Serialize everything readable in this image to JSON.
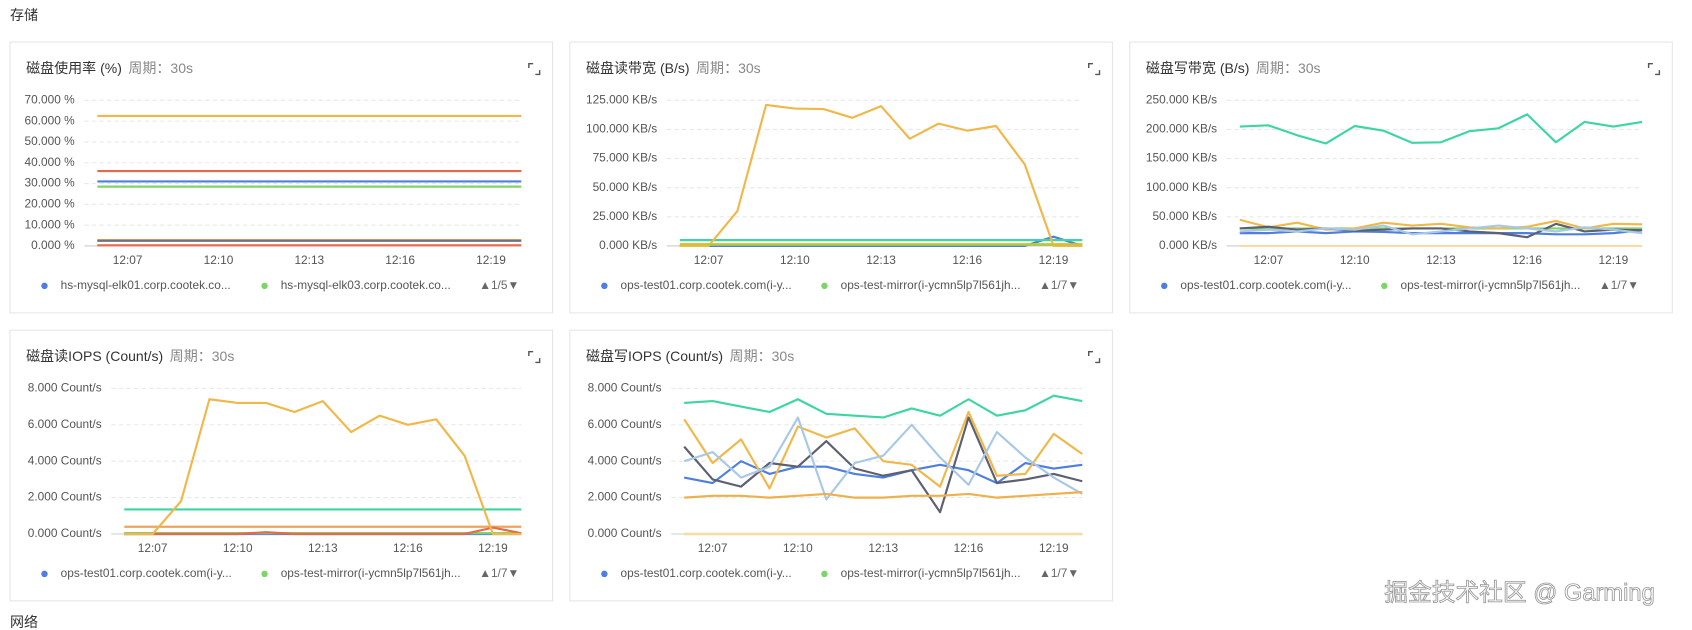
{
  "section_title": "存储",
  "next_section_title": "网络",
  "watermark": "掘金技术社区 @ Garming",
  "chart_data": [
    {
      "type": "line",
      "title": "磁盘使用率 (%)",
      "subtitle": "周期：30s",
      "categories": [
        null,
        "12:07",
        null,
        null,
        "12:10",
        null,
        null,
        "12:13",
        null,
        null,
        "12:16",
        null,
        null,
        "12:19",
        null
      ],
      "ylim": [
        0,
        70
      ],
      "yticks": [
        {
          "value": 0,
          "label": "0.000 %"
        },
        {
          "value": 10,
          "label": "10.000 %"
        },
        {
          "value": 20,
          "label": "20.000 %"
        },
        {
          "value": 30,
          "label": "30.000 %"
        },
        {
          "value": 40,
          "label": "40.000 %"
        },
        {
          "value": 50,
          "label": "50.000 %"
        },
        {
          "value": 60,
          "label": "60.000 %"
        },
        {
          "value": 70,
          "label": "70.000 %"
        }
      ],
      "grid": true,
      "legend_pager": "▲1/5▼",
      "series": [
        {
          "name": "hs-mysql-elk01.corp.cootek.co...",
          "color": "#4e7ee0",
          "values": [
            31,
            31,
            31,
            31,
            31,
            31,
            31,
            31,
            31,
            31,
            31,
            31,
            31,
            31,
            31
          ]
        },
        {
          "name": "hs-mysql-elk03.corp.cootek.co...",
          "color": "#7fd36b",
          "values": [
            28.5,
            28.5,
            28.5,
            28.5,
            28.5,
            28.5,
            28.5,
            28.5,
            28.5,
            28.5,
            28.5,
            28.5,
            28.5,
            28.5,
            28.5
          ]
        },
        {
          "color": "#f0b849",
          "values": [
            62.5,
            62.5,
            62.5,
            62.5,
            62.5,
            62.5,
            62.5,
            62.5,
            62.5,
            62.5,
            62.5,
            62.5,
            62.5,
            62.5,
            62.5
          ]
        },
        {
          "color": "#e8684a",
          "values": [
            36,
            36,
            36,
            36,
            36,
            36,
            36,
            36,
            36,
            36,
            36,
            36,
            36,
            36,
            36
          ]
        },
        {
          "color": "#f0a35e",
          "values": [
            2.8,
            2.8,
            2.8,
            2.8,
            2.8,
            2.8,
            2.8,
            2.8,
            2.8,
            2.8,
            2.8,
            2.8,
            2.8,
            2.8,
            2.8
          ]
        },
        {
          "color": "#6b7280",
          "values": [
            2.5,
            2.5,
            2.5,
            2.5,
            2.5,
            2.5,
            2.5,
            2.5,
            2.5,
            2.5,
            2.5,
            2.5,
            2.5,
            2.5,
            2.5
          ]
        },
        {
          "color": "#e8684a",
          "values": [
            0.3,
            0.3,
            0.3,
            0.3,
            0.3,
            0.3,
            0.3,
            0.3,
            0.3,
            0.3,
            0.3,
            0.3,
            0.3,
            0.3,
            0.3
          ]
        }
      ]
    },
    {
      "type": "line",
      "title": "磁盘读带宽 (B/s)",
      "subtitle": "周期：30s",
      "categories": [
        null,
        "12:07",
        null,
        null,
        "12:10",
        null,
        null,
        "12:13",
        null,
        null,
        "12:16",
        null,
        null,
        "12:19",
        null
      ],
      "ylim": [
        0,
        125
      ],
      "yticks": [
        {
          "value": 0,
          "label": "0.000 KB/s"
        },
        {
          "value": 25,
          "label": "25.000 KB/s"
        },
        {
          "value": 50,
          "label": "50.000 KB/s"
        },
        {
          "value": 75,
          "label": "75.000 KB/s"
        },
        {
          "value": 100,
          "label": "100.000 KB/s"
        },
        {
          "value": 125,
          "label": "125.000 KB/s"
        }
      ],
      "grid": true,
      "legend_pager": "▲1/7▼",
      "series": [
        {
          "name": "ops-test01.corp.cootek.com(i-y...",
          "color": "#4e7ee0",
          "values": [
            0,
            0,
            0,
            0,
            0,
            0,
            0,
            0,
            0,
            0,
            0,
            0,
            0,
            8,
            0
          ]
        },
        {
          "name": "ops-test-mirror(i-ycmn5lp7l561jh...",
          "color": "#7fd36b",
          "values": [
            1,
            1,
            1,
            1,
            1,
            1,
            1,
            1,
            1,
            1,
            1,
            1,
            1,
            1,
            1
          ]
        },
        {
          "color": "#3dd6a0",
          "values": [
            5,
            5,
            5,
            5,
            5,
            5,
            5,
            5,
            5,
            5,
            5,
            5,
            5,
            5,
            5
          ]
        },
        {
          "color": "#f0b849",
          "values": [
            0,
            0,
            30,
            121,
            118,
            117.5,
            110,
            120,
            92,
            105,
            99,
            103,
            70,
            0,
            0
          ]
        },
        {
          "color": "#c8c430",
          "values": [
            1.5,
            1.5,
            1.5,
            1.5,
            1.5,
            1.5,
            1.5,
            1.5,
            1.5,
            1.5,
            1.5,
            1.5,
            1.5,
            1.5,
            1.5
          ]
        }
      ]
    },
    {
      "type": "line",
      "title": "磁盘写带宽 (B/s)",
      "subtitle": "周期：30s",
      "categories": [
        null,
        "12:07",
        null,
        null,
        "12:10",
        null,
        null,
        "12:13",
        null,
        null,
        "12:16",
        null,
        null,
        "12:19",
        null
      ],
      "ylim": [
        0,
        250
      ],
      "yticks": [
        {
          "value": 0,
          "label": "0.000 KB/s"
        },
        {
          "value": 50,
          "label": "50.000 KB/s"
        },
        {
          "value": 100,
          "label": "100.000 KB/s"
        },
        {
          "value": 150,
          "label": "150.000 KB/s"
        },
        {
          "value": 200,
          "label": "200.000 KB/s"
        },
        {
          "value": 250,
          "label": "250.000 KB/s"
        }
      ],
      "grid": true,
      "legend_pager": "▲1/7▼",
      "series": [
        {
          "name": "ops-test01.corp.cootek.com(i-y...",
          "color": "#4e7ee0",
          "values": [
            22,
            22,
            25,
            22,
            25,
            24,
            22,
            22,
            22,
            22,
            22,
            20,
            20,
            22,
            27
          ]
        },
        {
          "name": "ops-test-mirror(i-ycmn5lp7l561jh...",
          "color": "#7fd36b",
          "values": [
            30,
            30,
            30,
            30,
            30,
            30,
            30,
            30,
            30,
            30,
            30,
            30,
            30,
            30,
            30
          ]
        },
        {
          "color": "#3dd6a0",
          "values": [
            205,
            207,
            190,
            176,
            206,
            198,
            177,
            178,
            197,
            202,
            226,
            178,
            213,
            205,
            213
          ]
        },
        {
          "color": "#f0b849",
          "values": [
            45,
            32,
            40,
            28,
            30,
            40,
            35,
            38,
            32,
            30,
            33,
            43,
            30,
            38,
            37
          ]
        },
        {
          "color": "#5d6070",
          "values": [
            30,
            33,
            28,
            30,
            26,
            28,
            30,
            30,
            25,
            22,
            15,
            38,
            25,
            28,
            27
          ]
        },
        {
          "color": "#a8c8e8",
          "values": [
            25,
            28,
            25,
            30,
            28,
            35,
            20,
            25,
            30,
            35,
            30,
            25,
            32,
            28,
            22
          ]
        },
        {
          "color": "#fcd9a5",
          "values": [
            0,
            0,
            0,
            0,
            0,
            0,
            0,
            0,
            0,
            0,
            0,
            0,
            0,
            0,
            0
          ]
        }
      ]
    },
    {
      "type": "line",
      "title": "磁盘读IOPS (Count/s)",
      "subtitle": "周期：30s",
      "categories": [
        null,
        "12:07",
        null,
        null,
        "12:10",
        null,
        null,
        "12:13",
        null,
        null,
        "12:16",
        null,
        null,
        "12:19",
        null
      ],
      "ylim": [
        0,
        8
      ],
      "yticks": [
        {
          "value": 0,
          "label": "0.000 Count/s"
        },
        {
          "value": 2,
          "label": "2.000 Count/s"
        },
        {
          "value": 4,
          "label": "4.000 Count/s"
        },
        {
          "value": 6,
          "label": "6.000 Count/s"
        },
        {
          "value": 8,
          "label": "8.000 Count/s"
        }
      ],
      "grid": true,
      "legend_pager": "▲1/7▼",
      "series": [
        {
          "name": "ops-test01.corp.cootek.com(i-y...",
          "color": "#4e7ee0",
          "values": [
            0,
            0,
            0,
            0,
            0,
            0,
            0,
            0,
            0,
            0,
            0,
            0,
            0,
            0,
            0
          ]
        },
        {
          "name": "ops-test-mirror(i-ycmn5lp7l561jh...",
          "color": "#7fd36b",
          "values": [
            0.05,
            0.05,
            0.05,
            0.05,
            0.05,
            0.05,
            0.05,
            0.05,
            0.05,
            0.05,
            0.05,
            0.05,
            0.05,
            0.05,
            0.05
          ]
        },
        {
          "color": "#3dd6a0",
          "values": [
            1.35,
            1.35,
            1.35,
            1.35,
            1.35,
            1.35,
            1.35,
            1.35,
            1.35,
            1.35,
            1.35,
            1.35,
            1.35,
            1.35,
            1.35
          ]
        },
        {
          "color": "#f0a35e",
          "values": [
            0.4,
            0.4,
            0.4,
            0.4,
            0.4,
            0.4,
            0.4,
            0.4,
            0.4,
            0.4,
            0.4,
            0.4,
            0.4,
            0.4,
            0.4
          ]
        },
        {
          "color": "#e8684a",
          "values": [
            0,
            0,
            0,
            0,
            0,
            0.1,
            0,
            0,
            0,
            0,
            0,
            0,
            0,
            0.35,
            0.05
          ]
        },
        {
          "color": "#f0b849",
          "values": [
            0,
            0,
            1.8,
            7.4,
            7.2,
            7.2,
            6.7,
            7.3,
            5.6,
            6.5,
            6,
            6.3,
            4.3,
            0,
            0
          ]
        }
      ]
    },
    {
      "type": "line",
      "title": "磁盘写IOPS (Count/s)",
      "subtitle": "周期：30s",
      "categories": [
        null,
        "12:07",
        null,
        null,
        "12:10",
        null,
        null,
        "12:13",
        null,
        null,
        "12:16",
        null,
        null,
        "12:19",
        null
      ],
      "ylim": [
        0,
        8
      ],
      "yticks": [
        {
          "value": 0,
          "label": "0.000 Count/s"
        },
        {
          "value": 2,
          "label": "2.000 Count/s"
        },
        {
          "value": 4,
          "label": "4.000 Count/s"
        },
        {
          "value": 6,
          "label": "6.000 Count/s"
        },
        {
          "value": 8,
          "label": "8.000 Count/s"
        }
      ],
      "grid": true,
      "legend_pager": "▲1/7▼",
      "series": [
        {
          "name": "ops-test01.corp.cootek.com(i-y...",
          "color": "#4e7ee0",
          "values": [
            3.1,
            2.8,
            4,
            3.3,
            3.7,
            3.7,
            3.3,
            3.1,
            3.5,
            3.8,
            3.5,
            2.8,
            3.9,
            3.6,
            3.8
          ]
        },
        {
          "name": "ops-test-mirror(i-ycmn5lp7l561jh...",
          "color": "#7fd36b",
          "values": [
            0,
            0,
            0,
            0,
            0,
            0,
            0,
            0,
            0,
            0,
            0,
            0,
            0,
            0,
            0
          ]
        },
        {
          "color": "#3dd6a0",
          "values": [
            7.2,
            7.3,
            7,
            6.7,
            7.4,
            6.6,
            6.5,
            6.4,
            6.9,
            6.5,
            7.4,
            6.5,
            6.8,
            7.6,
            7.3
          ]
        },
        {
          "color": "#f0b849",
          "values": [
            6.3,
            3.9,
            5.2,
            2.5,
            5.9,
            5.3,
            5.8,
            4,
            3.8,
            2.6,
            6.7,
            3.2,
            3.3,
            5.5,
            4.4
          ]
        },
        {
          "color": "#5d6070",
          "values": [
            4.8,
            3,
            2.6,
            3.9,
            3.7,
            5.1,
            3.6,
            3.2,
            3.5,
            1.2,
            6.4,
            2.8,
            3,
            3.3,
            2.9
          ]
        },
        {
          "color": "#a8c8e8",
          "values": [
            4,
            4.5,
            3.1,
            3.7,
            6.4,
            1.9,
            3.9,
            4.3,
            6,
            4.2,
            2.7,
            5.6,
            4.2,
            3.1,
            2.2
          ]
        },
        {
          "color": "#eeb04a",
          "values": [
            2,
            2.1,
            2.1,
            2,
            2.1,
            2.2,
            2,
            2,
            2.1,
            2.1,
            2.2,
            2,
            2.1,
            2.2,
            2.3
          ]
        },
        {
          "color": "#fcd9a5",
          "values": [
            0,
            0,
            0,
            0,
            0,
            0,
            0,
            0,
            0,
            0,
            0,
            0,
            0,
            0,
            0
          ]
        }
      ]
    }
  ]
}
